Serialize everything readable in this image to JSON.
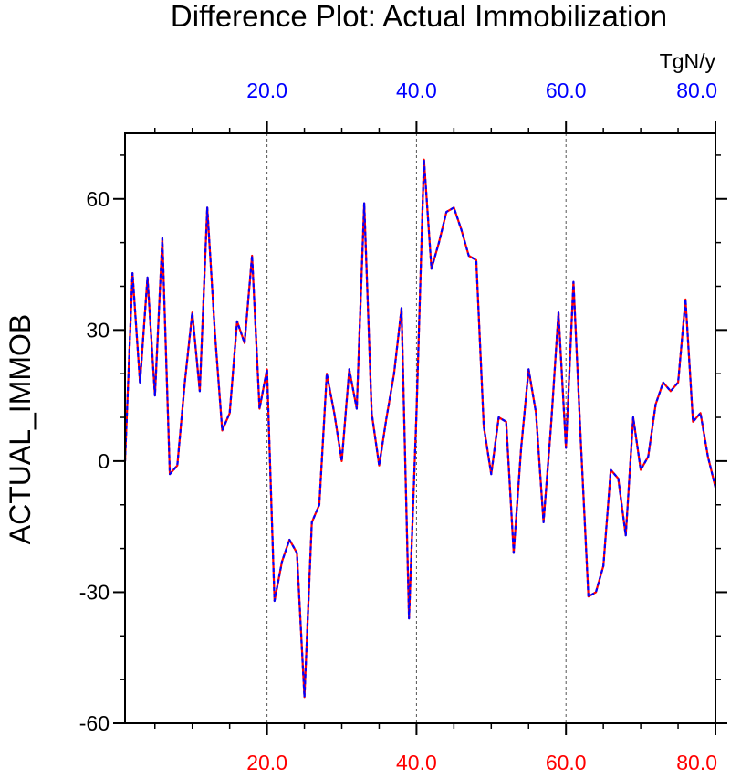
{
  "chart_data": {
    "type": "line",
    "title": "Difference Plot: Actual Immobilization",
    "ylabel": "ACTUAL_IMMOB",
    "units_label": "TgN/y",
    "xlim": [
      1,
      80
    ],
    "ylim": [
      -60,
      75
    ],
    "y_ticks": [
      "60",
      "30",
      "0",
      "-30",
      "-60"
    ],
    "y_tick_values": [
      60,
      30,
      0,
      -30,
      -60
    ],
    "x_ticks_bottom": [
      "20.0",
      "40.0",
      "60.0",
      "80.0"
    ],
    "x_ticks_top": [
      "20.0",
      "40.0",
      "60.0",
      "80.0"
    ],
    "x_tick_values": [
      20,
      40,
      60,
      80
    ],
    "dashed_gridlines_x": [
      20,
      40,
      60
    ],
    "colors": {
      "top_axis": "#0000ff",
      "bottom_axis": "#ff0000",
      "series_a": "#ff0000",
      "series_b": "#0000ff",
      "axes": "#000000"
    },
    "series": [
      {
        "color": "#ff0000",
        "x": [
          1,
          2,
          3,
          4,
          5,
          6,
          7,
          8,
          9,
          10,
          11,
          12,
          13,
          14,
          15,
          16,
          17,
          18,
          19,
          20,
          21,
          22,
          23,
          24,
          25,
          26,
          27,
          28,
          29,
          30,
          31,
          32,
          33,
          34,
          35,
          36,
          37,
          38,
          39,
          40,
          41,
          42,
          43,
          44,
          45,
          46,
          47,
          48,
          49,
          50,
          51,
          52,
          53,
          54,
          55,
          56,
          57,
          58,
          59,
          60,
          61,
          62,
          63,
          64,
          65,
          66,
          67,
          68,
          69,
          70,
          71,
          72,
          73,
          74,
          75,
          76,
          77,
          78,
          79,
          80
        ],
        "values": [
          0,
          43,
          18,
          42,
          15,
          51,
          -3,
          -1,
          18,
          34,
          16,
          58,
          30,
          7,
          11,
          32,
          27,
          47,
          12,
          21,
          -32,
          -23,
          -18,
          -21,
          -54,
          -14,
          -10,
          20,
          11,
          0,
          21,
          12,
          59,
          11,
          -1,
          10,
          20,
          35,
          -36,
          11,
          69,
          44,
          50,
          57,
          58,
          53,
          47,
          46,
          8,
          -3,
          10,
          9,
          -21,
          3,
          21,
          11,
          -14,
          8,
          34,
          3,
          41,
          4,
          -31,
          -30,
          -24,
          -2,
          -4,
          -17,
          10,
          -2,
          1,
          13,
          18,
          16,
          18,
          37,
          9,
          11,
          1,
          -6
        ]
      },
      {
        "color": "#0000ff",
        "x": [
          1,
          2,
          3,
          4,
          5,
          6,
          7,
          8,
          9,
          10,
          11,
          12,
          13,
          14,
          15,
          16,
          17,
          18,
          19,
          20,
          21,
          22,
          23,
          24,
          25,
          26,
          27,
          28,
          29,
          30,
          31,
          32,
          33,
          34,
          35,
          36,
          37,
          38,
          39,
          40,
          41,
          42,
          43,
          44,
          45,
          46,
          47,
          48,
          49,
          50,
          51,
          52,
          53,
          54,
          55,
          56,
          57,
          58,
          59,
          60,
          61,
          62,
          63,
          64,
          65,
          66,
          67,
          68,
          69,
          70,
          71,
          72,
          73,
          74,
          75,
          76,
          77,
          78,
          79,
          80
        ],
        "values": [
          0,
          43,
          18,
          42,
          15,
          51,
          -3,
          -1,
          18,
          34,
          16,
          58,
          30,
          7,
          11,
          32,
          27,
          47,
          12,
          21,
          -32,
          -23,
          -18,
          -21,
          -54,
          -14,
          -10,
          20,
          11,
          0,
          21,
          12,
          59,
          11,
          -1,
          10,
          20,
          35,
          -36,
          11,
          69,
          44,
          50,
          57,
          58,
          53,
          47,
          46,
          8,
          -3,
          10,
          9,
          -21,
          3,
          21,
          11,
          -14,
          8,
          34,
          3,
          41,
          4,
          -31,
          -30,
          -24,
          -2,
          -4,
          -17,
          10,
          -2,
          1,
          13,
          18,
          16,
          18,
          37,
          9,
          11,
          1,
          -6
        ]
      }
    ]
  }
}
